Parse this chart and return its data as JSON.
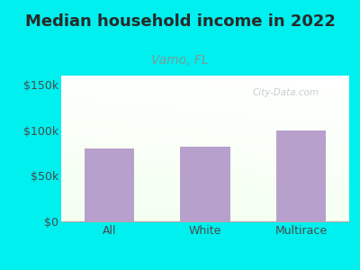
{
  "title": "Median household income in 2022",
  "subtitle": "Vamo, FL",
  "categories": [
    "All",
    "White",
    "Multirace"
  ],
  "values": [
    80000,
    82000,
    100000
  ],
  "bar_color": "#b8a0cc",
  "background_color": "#00efef",
  "title_color": "#2a2a2a",
  "subtitle_color": "#7a9a9a",
  "axis_label_color": "#4a4a4a",
  "ylim": [
    0,
    160000
  ],
  "yticks": [
    0,
    50000,
    100000,
    150000
  ],
  "ytick_labels": [
    "$0",
    "$50k",
    "$100k",
    "$150k"
  ],
  "title_fontsize": 13,
  "subtitle_fontsize": 10,
  "tick_fontsize": 9,
  "watermark": "City-Data.com"
}
